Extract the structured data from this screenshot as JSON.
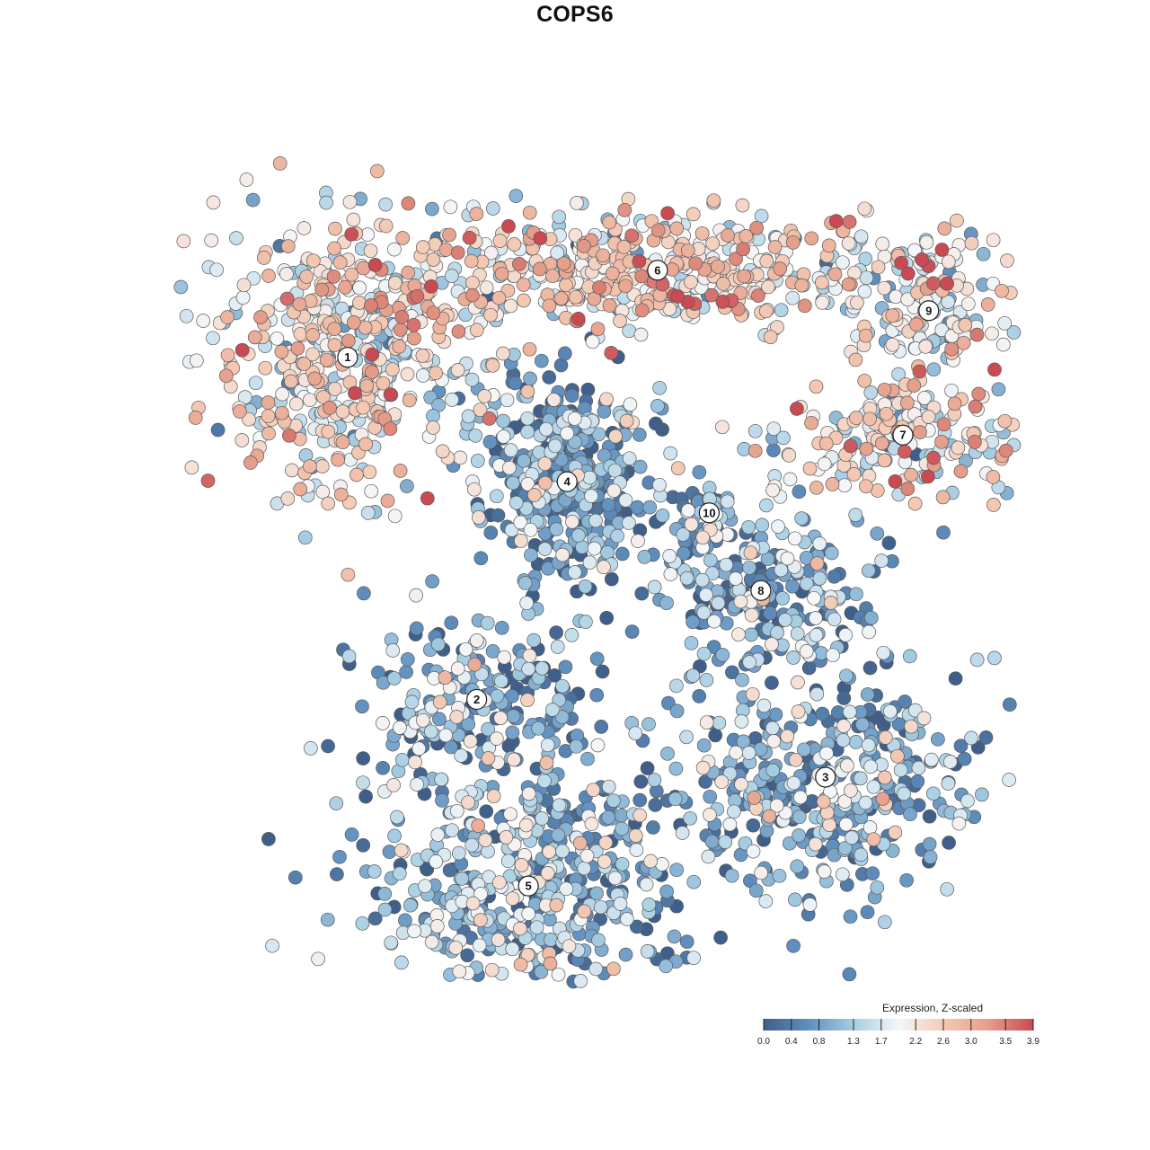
{
  "chart_data": {
    "type": "scatter",
    "title": "COPS6",
    "legend": {
      "title": "Expression, Z-scaled",
      "placement": "bottom-right",
      "ticks": [
        "0.0",
        "0.4",
        "0.8",
        "1.3",
        "1.7",
        "2.2",
        "2.6",
        "3.0",
        "3.5",
        "3.9"
      ],
      "range": [
        0.0,
        3.9
      ]
    },
    "colorscale": [
      "#3f5f8a",
      "#5f8fbf",
      "#a6cde3",
      "#f5f7f9",
      "#f4c9b3",
      "#e59f8b",
      "#c94a52"
    ],
    "clusters": [
      {
        "label": "1",
        "x": -0.95,
        "y": 0.7,
        "mean": 2.1
      },
      {
        "label": "2",
        "x": -0.45,
        "y": -0.4,
        "mean": 0.9
      },
      {
        "label": "3",
        "x": 0.9,
        "y": -0.65,
        "mean": 1.0
      },
      {
        "label": "4",
        "x": -0.1,
        "y": 0.3,
        "mean": 0.7
      },
      {
        "label": "5",
        "x": -0.25,
        "y": -1.0,
        "mean": 1.0
      },
      {
        "label": "6",
        "x": 0.25,
        "y": 0.98,
        "mean": 2.3
      },
      {
        "label": "7",
        "x": 1.2,
        "y": 0.45,
        "mean": 2.0
      },
      {
        "label": "8",
        "x": 0.65,
        "y": -0.05,
        "mean": 1.0
      },
      {
        "label": "9",
        "x": 1.3,
        "y": 0.85,
        "mean": 2.1
      },
      {
        "label": "10",
        "x": 0.45,
        "y": 0.2,
        "mean": 1.0
      }
    ]
  }
}
